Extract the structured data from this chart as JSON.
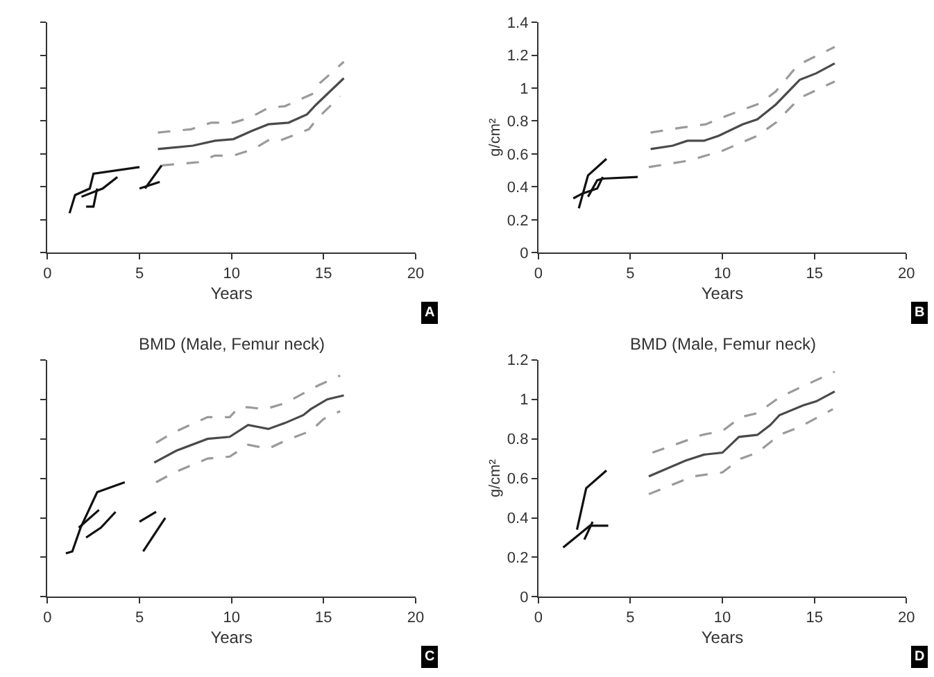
{
  "chart_data": [
    {
      "type": "line",
      "xlabel": "Years",
      "xlim": [
        0,
        20
      ],
      "xticks": [
        0,
        5,
        10,
        15,
        20
      ],
      "ylim": [
        0,
        1.4
      ],
      "yticks": [
        {
          "value": 0,
          "label": null
        },
        {
          "value": 0.2,
          "label": null
        },
        {
          "value": 0.4,
          "label": null
        },
        {
          "value": 0.6,
          "label": null
        },
        {
          "value": 0.8,
          "label": null
        },
        {
          "value": 1.0,
          "label": null
        },
        {
          "value": 1.2,
          "label": null
        },
        {
          "value": 1.4,
          "label": null
        }
      ],
      "tick_labels": "x",
      "marker": "none",
      "annotations": [
        "A"
      ],
      "series": [
        {
          "color": "#4a4a4a",
          "line_style": "solid",
          "x": [
            6.0,
            7.9,
            9.1,
            10.1,
            11.1,
            12.0,
            13.1,
            14.1,
            14.6,
            16.1
          ],
          "values": [
            0.63,
            0.65,
            0.68,
            0.69,
            0.74,
            0.78,
            0.79,
            0.84,
            0.9,
            1.06
          ]
        },
        {
          "color": "#9a9a9a",
          "line_style": "dashed",
          "x": [
            6.0,
            7.8,
            8.9,
            10.1,
            11.0,
            12.0,
            12.9,
            14.5,
            14.8,
            16.1
          ],
          "values": [
            0.73,
            0.75,
            0.79,
            0.79,
            0.82,
            0.88,
            0.89,
            0.97,
            1.03,
            1.16
          ]
        },
        {
          "color": "#9a9a9a",
          "line_style": "dashed",
          "x": [
            6.2,
            8.2,
            9.1,
            10.1,
            11.2,
            12.1,
            12.6,
            14.2,
            14.7,
            15.9
          ],
          "values": [
            0.53,
            0.55,
            0.59,
            0.59,
            0.63,
            0.69,
            0.68,
            0.75,
            0.82,
            0.95
          ]
        },
        {
          "color": "#111111",
          "line_style": "solid",
          "x": [
            1.2,
            1.5,
            2.3,
            2.5,
            5.0
          ],
          "values": [
            0.24,
            0.35,
            0.39,
            0.48,
            0.52
          ]
        },
        {
          "color": "#111111",
          "line_style": "solid",
          "x": [
            1.85,
            3.0,
            3.8
          ],
          "values": [
            0.34,
            0.39,
            0.46
          ]
        },
        {
          "color": "#111111",
          "line_style": "solid",
          "x": [
            2.1,
            2.5,
            2.7
          ],
          "values": [
            0.28,
            0.28,
            0.39
          ]
        },
        {
          "color": "#111111",
          "line_style": "solid",
          "x": [
            5.0,
            6.1
          ],
          "values": [
            0.39,
            0.43
          ]
        },
        {
          "color": "#111111",
          "line_style": "solid",
          "x": [
            5.3,
            6.2
          ],
          "values": [
            0.39,
            0.53
          ]
        }
      ]
    },
    {
      "type": "line",
      "xlabel": "Years",
      "ylabel": "g/cm²",
      "xlim": [
        0,
        20
      ],
      "xticks": [
        0,
        5,
        10,
        15,
        20
      ],
      "ylim": [
        0,
        1.4
      ],
      "yticks": [
        0,
        0.2,
        0.4,
        0.6,
        0.8,
        1,
        1.2,
        1.4
      ],
      "marker": "none",
      "annotations": [
        "B"
      ],
      "series": [
        {
          "color": "#4a4a4a",
          "line_style": "solid",
          "x": [
            6.1,
            7.3,
            8.1,
            9.0,
            9.8,
            11.1,
            11.9,
            12.9,
            14.2,
            15.1,
            16.1
          ],
          "values": [
            0.63,
            0.65,
            0.68,
            0.68,
            0.71,
            0.78,
            0.81,
            0.9,
            1.05,
            1.09,
            1.15
          ]
        },
        {
          "color": "#9a9a9a",
          "line_style": "dashed",
          "x": [
            6.1,
            7.8,
            9.1,
            10.2,
            12.1,
            12.9,
            14.1,
            16.1
          ],
          "values": [
            0.73,
            0.76,
            0.78,
            0.83,
            0.91,
            0.98,
            1.14,
            1.25
          ]
        },
        {
          "color": "#9a9a9a",
          "line_style": "dashed",
          "x": [
            6.0,
            8.2,
            9.1,
            9.8,
            11.9,
            12.9,
            14.2,
            16.1
          ],
          "values": [
            0.52,
            0.56,
            0.59,
            0.61,
            0.71,
            0.79,
            0.94,
            1.04
          ]
        },
        {
          "color": "#111111",
          "line_style": "solid",
          "x": [
            1.9,
            2.4,
            3.2,
            3.5
          ],
          "values": [
            0.33,
            0.36,
            0.39,
            0.46
          ]
        },
        {
          "color": "#111111",
          "line_style": "solid",
          "x": [
            2.2,
            2.7,
            3.7
          ],
          "values": [
            0.27,
            0.47,
            0.57
          ]
        },
        {
          "color": "#111111",
          "line_style": "solid",
          "x": [
            2.7,
            3.2,
            3.5,
            5.4
          ],
          "values": [
            0.34,
            0.44,
            0.45,
            0.46
          ]
        }
      ]
    },
    {
      "type": "line",
      "title": "BMD (Male, Femur neck)",
      "xlabel": "Years",
      "xlim": [
        0,
        20
      ],
      "xticks": [
        0,
        5,
        10,
        15,
        20
      ],
      "ylim": [
        0,
        1.2
      ],
      "yticks": [
        {
          "value": 0,
          "label": null
        },
        {
          "value": 0.2,
          "label": null
        },
        {
          "value": 0.4,
          "label": null
        },
        {
          "value": 0.6,
          "label": null
        },
        {
          "value": 0.8,
          "label": null
        },
        {
          "value": 1.0,
          "label": null
        },
        {
          "value": 1.2,
          "label": null
        }
      ],
      "tick_labels": "x",
      "marker": "none",
      "annotations": [
        "C"
      ],
      "series": [
        {
          "color": "#4a4a4a",
          "line_style": "solid",
          "x": [
            5.8,
            7.0,
            8.7,
            9.9,
            10.9,
            12.0,
            12.9,
            13.9,
            14.3,
            15.2,
            16.1
          ],
          "values": [
            0.68,
            0.74,
            0.8,
            0.81,
            0.87,
            0.85,
            0.88,
            0.92,
            0.95,
            1.0,
            1.02
          ]
        },
        {
          "color": "#9a9a9a",
          "line_style": "dashed",
          "x": [
            5.9,
            6.8,
            8.7,
            9.9,
            10.4,
            10.9,
            11.8,
            12.9,
            13.9,
            14.7,
            15.9
          ],
          "values": [
            0.78,
            0.83,
            0.91,
            0.91,
            0.96,
            0.96,
            0.95,
            0.98,
            1.03,
            1.07,
            1.12
          ]
        },
        {
          "color": "#9a9a9a",
          "line_style": "dashed",
          "x": [
            5.9,
            6.9,
            8.7,
            9.9,
            10.9,
            12.0,
            12.9,
            14.3,
            15.0,
            15.9
          ],
          "values": [
            0.58,
            0.63,
            0.7,
            0.71,
            0.77,
            0.75,
            0.79,
            0.84,
            0.9,
            0.94
          ]
        },
        {
          "color": "#111111",
          "line_style": "solid",
          "x": [
            1.0,
            1.35,
            1.8,
            2.7,
            4.2
          ],
          "values": [
            0.22,
            0.23,
            0.35,
            0.53,
            0.58
          ]
        },
        {
          "color": "#111111",
          "line_style": "solid",
          "x": [
            1.7,
            2.8
          ],
          "values": [
            0.35,
            0.44
          ]
        },
        {
          "color": "#111111",
          "line_style": "solid",
          "x": [
            2.1,
            2.9,
            3.7
          ],
          "values": [
            0.3,
            0.35,
            0.43
          ]
        },
        {
          "color": "#111111",
          "line_style": "solid",
          "x": [
            5.0,
            5.9
          ],
          "values": [
            0.38,
            0.43
          ]
        },
        {
          "color": "#111111",
          "line_style": "solid",
          "x": [
            5.2,
            6.4
          ],
          "values": [
            0.23,
            0.4
          ]
        }
      ]
    },
    {
      "type": "line",
      "title": "BMD (Male, Femur neck)",
      "xlabel": "Years",
      "ylabel": "g/cm²",
      "xlim": [
        0,
        20
      ],
      "xticks": [
        0,
        5,
        10,
        15,
        20
      ],
      "ylim": [
        0,
        1.2
      ],
      "yticks": [
        0,
        0.2,
        0.4,
        0.6,
        0.8,
        1,
        1.2
      ],
      "marker": "none",
      "annotations": [
        "D"
      ],
      "series": [
        {
          "color": "#4a4a4a",
          "line_style": "solid",
          "x": [
            6.0,
            8.0,
            9.0,
            10.0,
            10.9,
            11.9,
            12.6,
            13.1,
            14.4,
            15.1,
            16.1
          ],
          "values": [
            0.61,
            0.69,
            0.72,
            0.73,
            0.81,
            0.82,
            0.87,
            0.92,
            0.97,
            0.99,
            1.04
          ]
        },
        {
          "color": "#9a9a9a",
          "line_style": "dashed",
          "x": [
            6.2,
            8.9,
            10.0,
            11.0,
            11.9,
            13.1,
            14.0,
            16.1
          ],
          "values": [
            0.73,
            0.82,
            0.84,
            0.91,
            0.93,
            1.01,
            1.05,
            1.14
          ]
        },
        {
          "color": "#9a9a9a",
          "line_style": "dashed",
          "x": [
            6.0,
            8.4,
            10.0,
            11.0,
            11.9,
            13.1,
            14.2,
            16.0
          ],
          "values": [
            0.52,
            0.61,
            0.63,
            0.7,
            0.73,
            0.82,
            0.86,
            0.95
          ]
        },
        {
          "color": "#111111",
          "line_style": "solid",
          "x": [
            2.1,
            2.6,
            3.7
          ],
          "values": [
            0.34,
            0.55,
            0.64
          ]
        },
        {
          "color": "#111111",
          "line_style": "solid",
          "x": [
            1.35,
            2.8,
            3.8
          ],
          "values": [
            0.25,
            0.36,
            0.36
          ]
        },
        {
          "color": "#111111",
          "line_style": "solid",
          "x": [
            2.5,
            2.95
          ],
          "values": [
            0.29,
            0.38
          ]
        }
      ]
    }
  ]
}
